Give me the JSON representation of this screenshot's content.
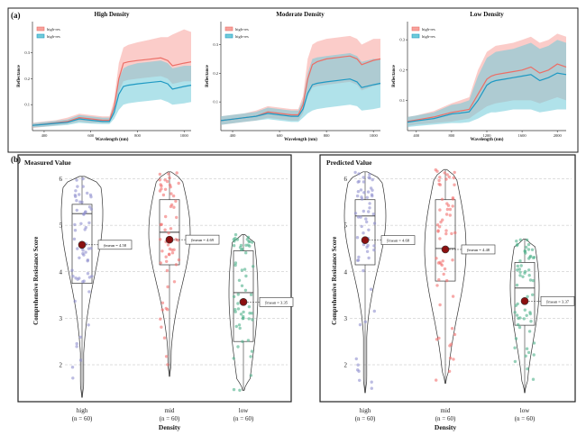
{
  "panel_a": {
    "label": "(a)",
    "charts": [
      {
        "title": "High Density",
        "xlabel": "Wavelength (nm)",
        "ylabel": "Reflectance",
        "legend": [
          "high-res",
          "high-res"
        ],
        "x_ticks": [
          400,
          600,
          800,
          1000
        ],
        "y_ticks": [
          0.1,
          0.2,
          0.3
        ],
        "ylim": [
          0,
          0.42
        ]
      },
      {
        "title": "Moderate Density",
        "xlabel": "Wavelength (nm)",
        "ylabel": "Reflectance",
        "legend": [
          "high-res",
          "high-res"
        ],
        "x_ticks": [
          400,
          600,
          800,
          1000
        ],
        "y_ticks": [
          0.1,
          0.2,
          0.3
        ],
        "ylim": [
          0,
          0.38
        ]
      },
      {
        "title": "Low Density",
        "xlabel": "Wavelength (nm)",
        "ylabel": "Reflectance",
        "legend": [
          "high-res",
          "high-res"
        ],
        "x_ticks": [
          400,
          800,
          1200,
          1600,
          2000
        ],
        "y_ticks": [
          0.1,
          0.2,
          0.3
        ],
        "ylim": [
          0,
          0.36
        ]
      }
    ]
  },
  "panel_b": {
    "label": "(b)",
    "y_ticks": [
      2,
      3,
      4,
      5,
      6
    ],
    "ylabel": "Comprehensive Resistance Score",
    "xlabel": "Density",
    "categories": [
      {
        "name": "high",
        "n": "(n = 60)"
      },
      {
        "name": "mid",
        "n": "(n = 60)"
      },
      {
        "name": "low",
        "n": "(n = 60)"
      }
    ],
    "colors": {
      "high": "#8f8fcf",
      "mid": "#f2706e",
      "low": "#4fb08a",
      "mean": "#8b1010"
    }
  },
  "chart_data": [
    {
      "type": "area",
      "title": "High Density",
      "xlabel": "Wavelength (nm)",
      "ylabel": "Reflectance",
      "xlim": [
        350,
        1030
      ],
      "ylim": [
        0,
        0.42
      ],
      "x": [
        350,
        400,
        450,
        500,
        550,
        600,
        650,
        680,
        700,
        720,
        740,
        760,
        800,
        850,
        900,
        930,
        950,
        1000,
        1030
      ],
      "series": [
        {
          "mean": [
            0.02,
            0.025,
            0.03,
            0.035,
            0.05,
            0.045,
            0.04,
            0.04,
            0.09,
            0.2,
            0.26,
            0.265,
            0.27,
            0.275,
            0.28,
            0.27,
            0.25,
            0.26,
            0.265
          ],
          "lower": [
            0.01,
            0.015,
            0.02,
            0.025,
            0.035,
            0.03,
            0.03,
            0.03,
            0.06,
            0.15,
            0.19,
            0.195,
            0.2,
            0.205,
            0.21,
            0.2,
            0.18,
            0.19,
            0.19
          ],
          "upper": [
            0.03,
            0.035,
            0.04,
            0.05,
            0.065,
            0.06,
            0.055,
            0.055,
            0.12,
            0.26,
            0.32,
            0.33,
            0.34,
            0.35,
            0.36,
            0.36,
            0.37,
            0.39,
            0.38
          ]
        },
        {
          "mean": [
            0.02,
            0.024,
            0.028,
            0.032,
            0.045,
            0.04,
            0.035,
            0.035,
            0.07,
            0.14,
            0.17,
            0.175,
            0.18,
            0.185,
            0.19,
            0.18,
            0.16,
            0.17,
            0.175
          ],
          "lower": [
            0.012,
            0.015,
            0.018,
            0.022,
            0.03,
            0.027,
            0.025,
            0.025,
            0.045,
            0.08,
            0.1,
            0.105,
            0.11,
            0.115,
            0.12,
            0.11,
            0.1,
            0.105,
            0.11
          ],
          "upper": [
            0.028,
            0.033,
            0.038,
            0.043,
            0.06,
            0.055,
            0.05,
            0.05,
            0.1,
            0.2,
            0.24,
            0.25,
            0.26,
            0.265,
            0.27,
            0.26,
            0.24,
            0.25,
            0.25
          ]
        }
      ]
    },
    {
      "type": "area",
      "title": "Moderate Density",
      "xlabel": "Wavelength (nm)",
      "ylabel": "Reflectance",
      "xlim": [
        350,
        1030
      ],
      "ylim": [
        0,
        0.38
      ],
      "x": [
        350,
        400,
        450,
        500,
        550,
        600,
        650,
        680,
        700,
        720,
        740,
        760,
        800,
        850,
        900,
        930,
        950,
        1000,
        1030
      ],
      "series": [
        {
          "mean": [
            0.035,
            0.04,
            0.045,
            0.05,
            0.065,
            0.06,
            0.055,
            0.055,
            0.09,
            0.18,
            0.23,
            0.24,
            0.25,
            0.255,
            0.26,
            0.25,
            0.23,
            0.245,
            0.25
          ],
          "lower": [
            0.02,
            0.025,
            0.03,
            0.035,
            0.045,
            0.04,
            0.035,
            0.035,
            0.06,
            0.12,
            0.15,
            0.155,
            0.16,
            0.165,
            0.17,
            0.16,
            0.14,
            0.155,
            0.16
          ],
          "upper": [
            0.05,
            0.055,
            0.06,
            0.07,
            0.085,
            0.08,
            0.075,
            0.075,
            0.12,
            0.25,
            0.3,
            0.31,
            0.32,
            0.325,
            0.33,
            0.32,
            0.3,
            0.32,
            0.32
          ]
        },
        {
          "mean": [
            0.035,
            0.04,
            0.045,
            0.05,
            0.06,
            0.055,
            0.05,
            0.05,
            0.075,
            0.13,
            0.16,
            0.165,
            0.17,
            0.175,
            0.18,
            0.17,
            0.15,
            0.16,
            0.165
          ],
          "lower": [
            0.02,
            0.025,
            0.03,
            0.035,
            0.04,
            0.035,
            0.03,
            0.03,
            0.045,
            0.06,
            0.07,
            0.075,
            0.08,
            0.085,
            0.09,
            0.085,
            0.07,
            0.075,
            0.08
          ],
          "upper": [
            0.05,
            0.055,
            0.06,
            0.065,
            0.08,
            0.075,
            0.07,
            0.07,
            0.105,
            0.2,
            0.25,
            0.255,
            0.26,
            0.265,
            0.27,
            0.26,
            0.24,
            0.25,
            0.25
          ]
        }
      ]
    },
    {
      "type": "area",
      "title": "Low Density",
      "xlabel": "Wavelength (nm)",
      "ylabel": "Reflectance",
      "xlim": [
        300,
        2100
      ],
      "ylim": [
        0,
        0.36
      ],
      "x": [
        300,
        400,
        600,
        800,
        900,
        1000,
        1100,
        1200,
        1250,
        1300,
        1400,
        1500,
        1600,
        1700,
        1800,
        1900,
        2000,
        2100
      ],
      "series": [
        {
          "mean": [
            0.03,
            0.035,
            0.045,
            0.06,
            0.065,
            0.07,
            0.12,
            0.17,
            0.18,
            0.185,
            0.19,
            0.195,
            0.2,
            0.21,
            0.19,
            0.2,
            0.22,
            0.21
          ],
          "lower": [
            0.015,
            0.02,
            0.025,
            0.03,
            0.035,
            0.04,
            0.06,
            0.08,
            0.085,
            0.09,
            0.095,
            0.1,
            0.1,
            0.1,
            0.09,
            0.1,
            0.11,
            0.1
          ],
          "upper": [
            0.045,
            0.05,
            0.065,
            0.09,
            0.1,
            0.11,
            0.2,
            0.26,
            0.27,
            0.28,
            0.285,
            0.29,
            0.3,
            0.31,
            0.29,
            0.3,
            0.32,
            0.31
          ]
        },
        {
          "mean": [
            0.028,
            0.032,
            0.04,
            0.055,
            0.058,
            0.062,
            0.1,
            0.15,
            0.16,
            0.165,
            0.17,
            0.175,
            0.18,
            0.185,
            0.165,
            0.175,
            0.19,
            0.185
          ],
          "lower": [
            0.012,
            0.015,
            0.02,
            0.025,
            0.025,
            0.028,
            0.04,
            0.055,
            0.06,
            0.06,
            0.065,
            0.07,
            0.07,
            0.07,
            0.06,
            0.065,
            0.07,
            0.07
          ],
          "upper": [
            0.045,
            0.05,
            0.06,
            0.085,
            0.09,
            0.1,
            0.18,
            0.24,
            0.25,
            0.26,
            0.265,
            0.27,
            0.28,
            0.29,
            0.27,
            0.28,
            0.3,
            0.29
          ]
        }
      ]
    },
    {
      "type": "violin",
      "title": "Measured Value",
      "xlabel": "Density",
      "ylabel": "Comprehensive Resistance Score",
      "ylim": [
        1.3,
        6.2
      ],
      "categories": [
        "high",
        "mid",
        "low"
      ],
      "n_labels": [
        "(n = 60)",
        "(n = 60)",
        "(n = 60)"
      ],
      "box": [
        {
          "q1": 3.75,
          "median": 5.25,
          "q3": 5.45,
          "min": 1.3,
          "max": 6.05
        },
        {
          "q1": 4.15,
          "median": 4.85,
          "q3": 5.55,
          "min": 1.75,
          "max": 6.15
        },
        {
          "q1": 2.5,
          "median": 3.55,
          "q3": 4.45,
          "min": 1.45,
          "max": 4.8
        }
      ],
      "means": [
        4.58,
        4.69,
        3.35
      ],
      "mean_labels": [
        "ŷmean = 4.58",
        "ŷmean = 4.69",
        "ŷmean = 3.35"
      ]
    },
    {
      "type": "violin",
      "title": "Predicted Value",
      "xlabel": "Density",
      "ylabel": "Comprehensive Resistance Score",
      "ylim": [
        1.3,
        6.2
      ],
      "categories": [
        "high",
        "mid",
        "low"
      ],
      "n_labels": [
        "(n = 60)",
        "(n = 60)",
        "(n = 60)"
      ],
      "box": [
        {
          "q1": 4.15,
          "median": 5.2,
          "q3": 5.55,
          "min": 1.4,
          "max": 6.15
        },
        {
          "q1": 3.8,
          "median": 4.5,
          "q3": 5.55,
          "min": 1.6,
          "max": 6.2
        },
        {
          "q1": 2.85,
          "median": 3.65,
          "q3": 4.2,
          "min": 1.4,
          "max": 4.7
        }
      ],
      "means": [
        4.68,
        4.48,
        3.37
      ],
      "mean_labels": [
        "ŷmean = 4.68",
        "ŷmean = 4.48",
        "ŷmean = 3.37"
      ]
    }
  ]
}
